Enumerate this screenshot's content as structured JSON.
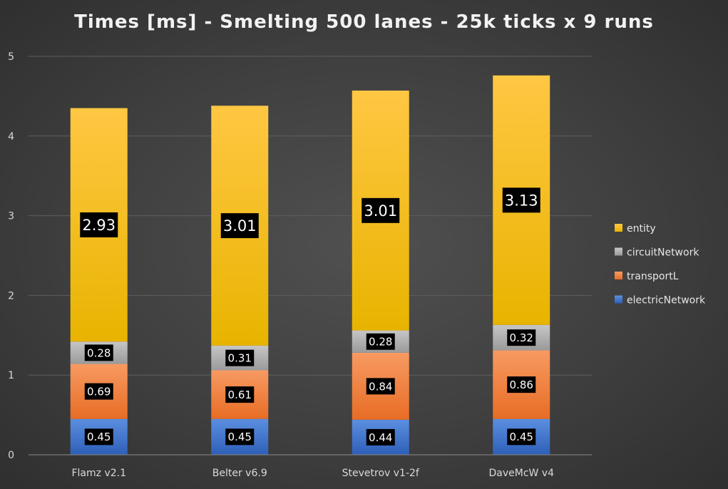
{
  "chart_data": {
    "type": "bar",
    "stacked": true,
    "title": "Times [ms] - Smelting 500 lanes - 25k ticks x 9 runs",
    "xlabel": "",
    "ylabel": "",
    "ylim": [
      0,
      5
    ],
    "yticks": [
      "0",
      "1",
      "2",
      "3",
      "4",
      "5"
    ],
    "grid": true,
    "legend_position": "right",
    "categories": [
      "Flamz v2.1",
      "Belter v6.9",
      "Stevetrov v1-2f",
      "DaveMcW v4"
    ],
    "series": [
      {
        "name": "electricNetwork",
        "values": [
          0.45,
          0.45,
          0.44,
          0.45
        ],
        "labels": [
          "0.45",
          "0.45",
          "0.44",
          "0.45"
        ],
        "color_top": "#5b8fe0",
        "color_bottom": "#2e5fb8"
      },
      {
        "name": "transportL",
        "values": [
          0.69,
          0.61,
          0.84,
          0.86
        ],
        "labels": [
          "0.69",
          "0.61",
          "0.84",
          "0.86"
        ],
        "color_top": "#f79a62",
        "color_bottom": "#e86d25"
      },
      {
        "name": "circuitNetwork",
        "values": [
          0.28,
          0.31,
          0.28,
          0.32
        ],
        "labels": [
          "0.28",
          "0.31",
          "0.28",
          "0.32"
        ],
        "color_top": "#c6c6c6",
        "color_bottom": "#9a9a9a"
      },
      {
        "name": "entity",
        "values": [
          2.93,
          3.01,
          3.01,
          3.13
        ],
        "labels": [
          "2.93",
          "3.01",
          "3.01",
          "3.13"
        ],
        "color_top": "#ffc743",
        "color_bottom": "#e8b400"
      }
    ],
    "legend_order": [
      "entity",
      "circuitNetwork",
      "transportL",
      "electricNetwork"
    ]
  }
}
